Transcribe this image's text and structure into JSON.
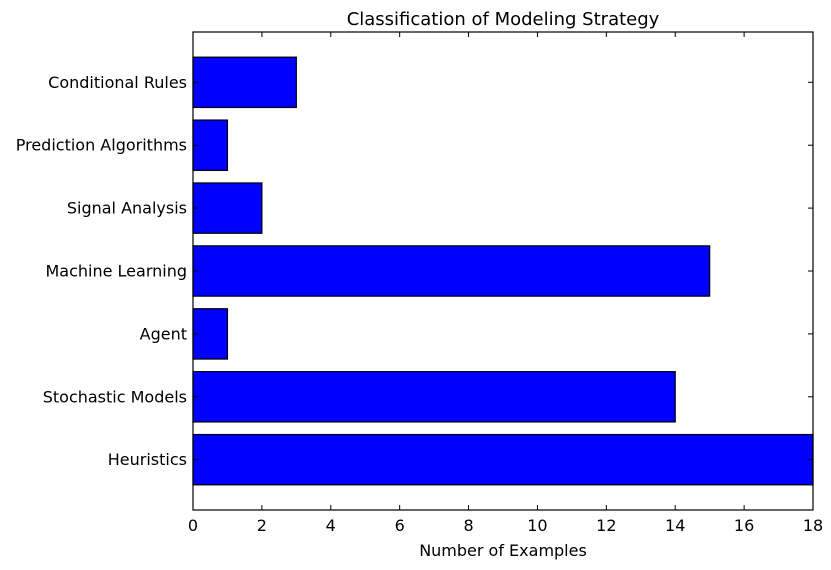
{
  "chart_data": {
    "type": "bar",
    "orientation": "horizontal",
    "title": "Classification of Modeling Strategy",
    "xlabel": "Number of Examples",
    "ylabel": "",
    "categories": [
      "Heuristics",
      "Stochastic Models",
      "Agent",
      "Machine Learning",
      "Signal Analysis",
      "Prediction Algorithms",
      "Conditional Rules"
    ],
    "values": [
      18,
      14,
      1,
      15,
      2,
      1,
      3
    ],
    "xlim": [
      0,
      18
    ],
    "xticks": [
      0,
      2,
      4,
      6,
      8,
      10,
      12,
      14,
      16,
      18
    ],
    "grid": false,
    "legend": "none",
    "bar_color": "#0000ff",
    "edge_color": "#000000"
  }
}
